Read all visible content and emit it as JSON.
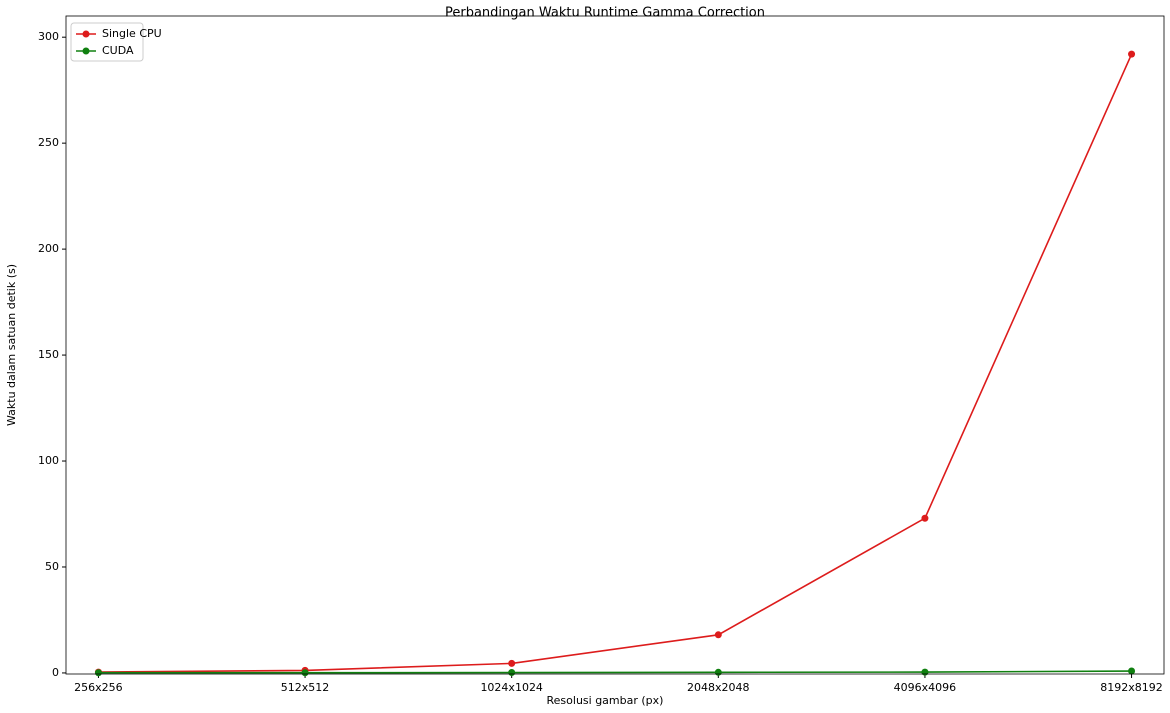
{
  "chart_data": {
    "type": "line",
    "title": "Perbandingan Waktu Runtime Gamma Correction",
    "x_label": "Resolusi gambar (px)",
    "y_label": "Waktu dalam satuan detik (s)",
    "categories": [
      "256x256",
      "512x512",
      "1024x1024",
      "2048x2048",
      "4096x4096",
      "8192x8192"
    ],
    "series": [
      {
        "name": "Single CPU",
        "color": "#dd1c1c",
        "values": [
          0.4,
          1.2,
          4.5,
          18,
          73,
          292
        ]
      },
      {
        "name": "CUDA",
        "color": "#108010",
        "values": [
          0.1,
          0.1,
          0.2,
          0.3,
          0.4,
          0.9
        ]
      }
    ],
    "ylim": [
      -0.5,
      310
    ],
    "yticks": [
      0,
      50,
      100,
      150,
      200,
      250,
      300
    ],
    "grid": false,
    "legend": "upper-left"
  }
}
